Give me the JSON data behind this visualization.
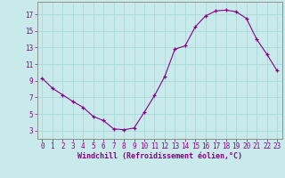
{
  "x": [
    0,
    1,
    2,
    3,
    4,
    5,
    6,
    7,
    8,
    9,
    10,
    11,
    12,
    13,
    14,
    15,
    16,
    17,
    18,
    19,
    20,
    21,
    22,
    23
  ],
  "y": [
    9.3,
    8.1,
    7.3,
    6.5,
    5.8,
    4.7,
    4.2,
    3.2,
    3.1,
    3.3,
    5.2,
    7.2,
    9.5,
    12.8,
    13.2,
    15.5,
    16.8,
    17.4,
    17.5,
    17.3,
    16.5,
    14.0,
    12.2,
    10.2
  ],
  "xlim": [
    -0.5,
    23.5
  ],
  "ylim": [
    2.0,
    18.5
  ],
  "yticks": [
    3,
    5,
    7,
    9,
    11,
    13,
    15,
    17
  ],
  "xticks": [
    0,
    1,
    2,
    3,
    4,
    5,
    6,
    7,
    8,
    9,
    10,
    11,
    12,
    13,
    14,
    15,
    16,
    17,
    18,
    19,
    20,
    21,
    22,
    23
  ],
  "xlabel": "Windchill (Refroidissement éolien,°C)",
  "line_color": "#880088",
  "marker": "+",
  "bg_color": "#c8eaea",
  "grid_color": "#a8d8d8",
  "text_color": "#880088",
  "tick_fontsize": 5.5,
  "xlabel_fontsize": 6.0
}
